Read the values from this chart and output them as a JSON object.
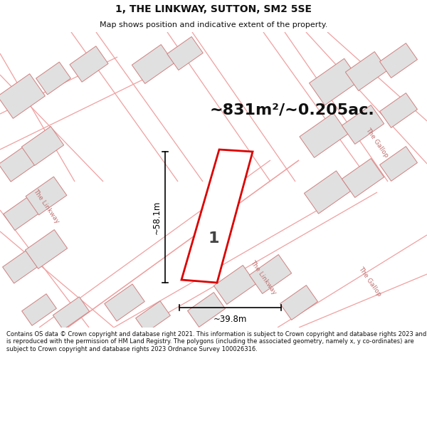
{
  "title": "1, THE LINKWAY, SUTTON, SM2 5SE",
  "subtitle": "Map shows position and indicative extent of the property.",
  "area_text": "~831m²/~0.205ac.",
  "plot_label": "1",
  "dim_width": "~39.8m",
  "dim_height": "~58.1m",
  "footer": "Contains OS data © Crown copyright and database right 2021. This information is subject to Crown copyright and database rights 2023 and is reproduced with the permission of HM Land Registry. The polygons (including the associated geometry, namely x, y co-ordinates) are subject to Crown copyright and database rights 2023 Ordnance Survey 100026316.",
  "bg_color": "#ffffff",
  "road_line_color": "#f0a0a0",
  "building_fill": "#e0e0e0",
  "building_edge": "#d08080",
  "plot_edge": "#dd0000",
  "plot_fill": "#ffffff",
  "dim_color": "#111111",
  "title_color": "#111111",
  "street_label_color": "#c07070"
}
